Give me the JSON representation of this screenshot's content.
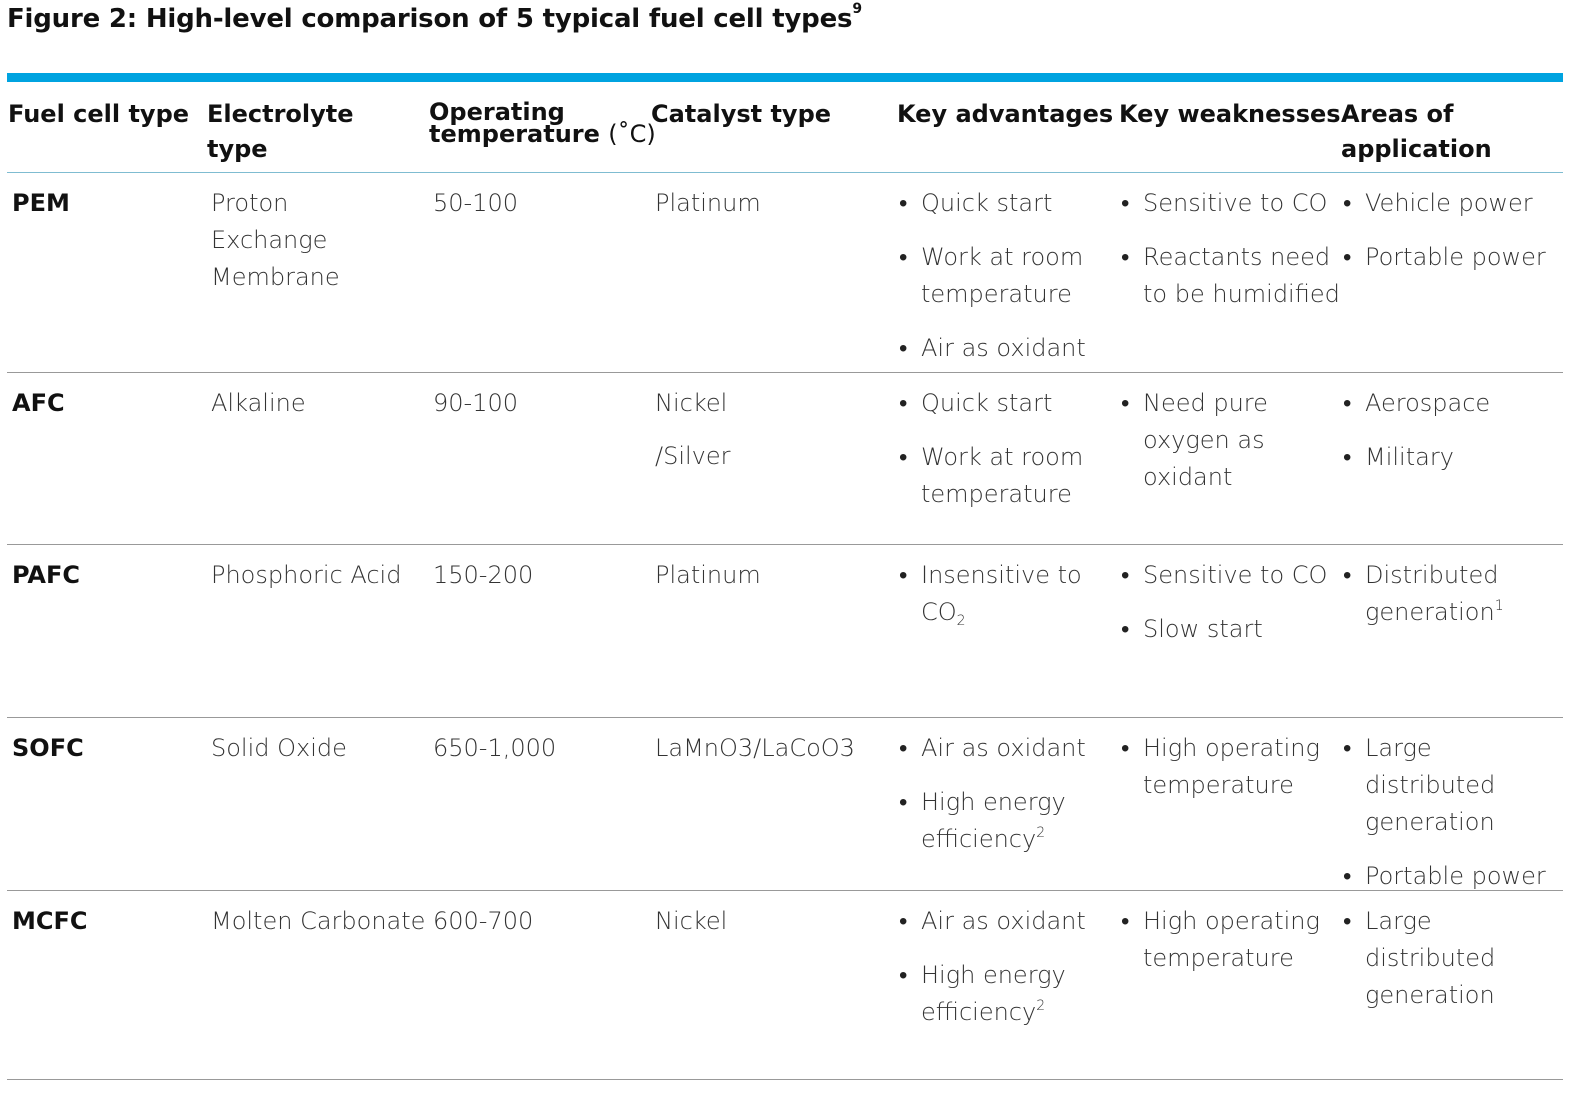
{
  "title": {
    "text": "Figure 2: High-level comparison of 5 typical fuel cell types",
    "footnote": "9"
  },
  "headers": {
    "fuel_cell_type": "Fuel cell type",
    "electrolyte_type_1": "Electrolyte",
    "electrolyte_type_2": "type",
    "operating_temp_1": "Operating",
    "operating_temp_2": "temperature",
    "operating_temp_unit": "(˚C)",
    "catalyst_type": "Catalyst type",
    "key_advantages": "Key advantages",
    "key_weaknesses": "Key weaknesses",
    "areas_1": "Areas of",
    "areas_2": "application"
  },
  "accent_color": "#00a3e0",
  "rows": [
    {
      "type": "PEM",
      "electrolyte": [
        "Proton",
        "Exchange",
        "Membrane"
      ],
      "temperature": "50-100",
      "catalyst": [
        "Platinum"
      ],
      "advantages": [
        {
          "lines": [
            "Quick start"
          ]
        },
        {
          "lines": [
            "Work at room",
            "temperature"
          ]
        },
        {
          "lines": [
            "Air as oxidant"
          ]
        }
      ],
      "weaknesses": [
        {
          "lines": [
            "Sensitive to CO"
          ]
        },
        {
          "lines": [
            "Reactants need",
            "to be humidified"
          ]
        }
      ],
      "applications": [
        {
          "lines": [
            "Vehicle power"
          ]
        },
        {
          "lines": [
            "Portable power"
          ]
        }
      ]
    },
    {
      "type": "AFC",
      "electrolyte": [
        "Alkaline"
      ],
      "temperature": "90-100",
      "catalyst": [
        "Nickel",
        "/Silver"
      ],
      "advantages": [
        {
          "lines": [
            "Quick start"
          ]
        },
        {
          "lines": [
            "Work at room",
            "temperature"
          ]
        }
      ],
      "weaknesses": [
        {
          "lines": [
            "Need pure",
            "oxygen as",
            "oxidant"
          ]
        }
      ],
      "applications": [
        {
          "lines": [
            "Aerospace"
          ]
        },
        {
          "lines": [
            "Military"
          ]
        }
      ]
    },
    {
      "type": "PAFC",
      "electrolyte": [
        "Phosphoric Acid"
      ],
      "temperature": "150-200",
      "catalyst": [
        "Platinum"
      ],
      "advantages": [
        {
          "lines": [
            "Insensitive to",
            "CO"
          ],
          "sub": "2"
        }
      ],
      "weaknesses": [
        {
          "lines": [
            "Sensitive to CO"
          ]
        },
        {
          "lines": [
            "Slow start"
          ]
        }
      ],
      "applications": [
        {
          "lines": [
            "Distributed",
            "generation"
          ],
          "sup": "1"
        }
      ]
    },
    {
      "type": "SOFC",
      "electrolyte": [
        "Solid Oxide"
      ],
      "temperature": "650-1,000",
      "catalyst": [
        "LaMnO3/LaCoO3"
      ],
      "advantages": [
        {
          "lines": [
            "Air as oxidant"
          ]
        },
        {
          "lines": [
            "High energy",
            "efficiency"
          ],
          "sup": "2"
        }
      ],
      "weaknesses": [
        {
          "lines": [
            "High operating",
            "temperature"
          ]
        }
      ],
      "applications": [
        {
          "lines": [
            "Large distributed",
            "generation"
          ]
        },
        {
          "lines": [
            "Portable power"
          ]
        }
      ]
    },
    {
      "type": "MCFC",
      "electrolyte": [
        "Molten Carbonate"
      ],
      "temperature": "600-700",
      "catalyst": [
        "Nickel"
      ],
      "advantages": [
        {
          "lines": [
            "Air as oxidant"
          ]
        },
        {
          "lines": [
            "High energy",
            "efficiency"
          ],
          "sup": "2"
        }
      ],
      "weaknesses": [
        {
          "lines": [
            "High operating",
            "temperature"
          ]
        }
      ],
      "applications": [
        {
          "lines": [
            "Large distributed",
            "generation"
          ]
        }
      ]
    }
  ]
}
